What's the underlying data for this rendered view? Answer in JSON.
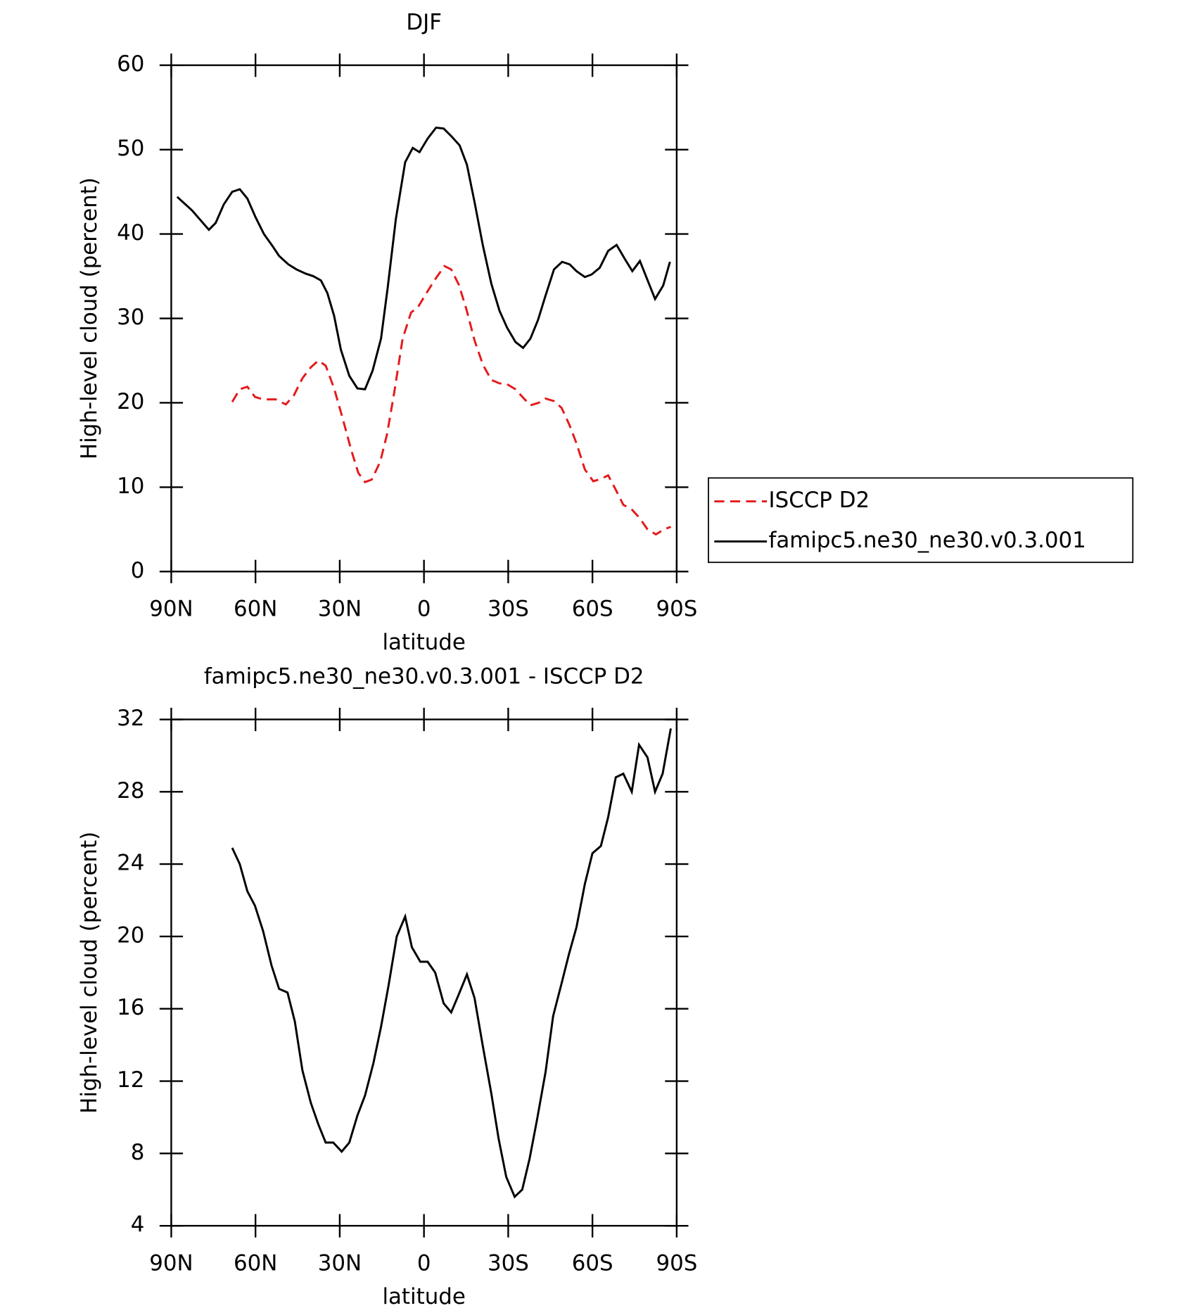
{
  "chart_data": [
    {
      "type": "line",
      "title": "DJF",
      "xlabel": "latitude",
      "ylabel": "High-level cloud (percent)",
      "xlim": [
        90,
        -90
      ],
      "xticks": [
        {
          "value": 90,
          "label": "90N"
        },
        {
          "value": 60,
          "label": "60N"
        },
        {
          "value": 30,
          "label": "30N"
        },
        0,
        {
          "value": -30,
          "label": "30S"
        },
        {
          "value": -60,
          "label": "60S"
        },
        {
          "value": -90,
          "label": "90S"
        }
      ],
      "ylim": [
        0,
        60
      ],
      "yticks": [
        0,
        10,
        20,
        30,
        40,
        50,
        60
      ],
      "legend": "outside-right",
      "series": [
        {
          "name": "ISCCP D2",
          "color": "#e41a1c",
          "dash": "dashed",
          "x": [
            68.3,
            65.6,
            62.9,
            60.2,
            57.3,
            52.8,
            49.2,
            46.3,
            43.3,
            40.3,
            37.6,
            35.0,
            32.0,
            29.0,
            26.0,
            23.4,
            21.0,
            18.6,
            15.6,
            13.2,
            10.6,
            7.6,
            4.6,
            2.2,
            -0.7,
            -3.7,
            -7.3,
            -9.7,
            -12.4,
            -15.1,
            -18.0,
            -21.0,
            -24.0,
            -26.9,
            -29.6,
            -32.6,
            -35.6,
            -37.9,
            -40.9,
            -43.3,
            -46.3,
            -49.0,
            -51.9,
            -54.3,
            -57.3,
            -60.3,
            -63.2,
            -65.6,
            -68.3,
            -71.0,
            -73.9,
            -76.9,
            -79.6,
            -82.6,
            -85.5,
            -87.9
          ],
          "values": [
            20.1,
            21.6,
            21.9,
            20.7,
            20.4,
            20.4,
            19.8,
            20.9,
            22.9,
            24.2,
            25.0,
            24.4,
            21.7,
            18.2,
            14.5,
            11.7,
            10.6,
            10.9,
            13.0,
            16.2,
            21.2,
            27.6,
            30.7,
            31.3,
            32.9,
            34.5,
            36.2,
            35.8,
            34.0,
            31.1,
            27.4,
            24.5,
            22.7,
            22.3,
            22.2,
            21.6,
            20.5,
            19.7,
            20.0,
            20.5,
            20.2,
            19.4,
            17.3,
            15.2,
            12.1,
            10.7,
            11.0,
            11.4,
            9.7,
            7.9,
            7.4,
            6.3,
            5.0,
            4.4,
            5.0,
            5.3
          ]
        },
        {
          "name": "famipc5.ne30_ne30.v0.3.001",
          "color": "#000000",
          "dash": "solid",
          "x": [
            87.9,
            82.6,
            76.6,
            74.2,
            71.3,
            68.3,
            65.6,
            62.9,
            60.0,
            57.0,
            54.0,
            51.6,
            48.3,
            45.4,
            42.1,
            39.4,
            36.7,
            34.4,
            32.0,
            29.6,
            26.6,
            23.7,
            21.0,
            18.3,
            15.3,
            12.9,
            10.0,
            6.7,
            4.0,
            1.6,
            -1.3,
            -4.3,
            -7.0,
            -9.7,
            -12.7,
            -15.3,
            -18.0,
            -21.0,
            -24.0,
            -26.9,
            -29.6,
            -32.6,
            -35.3,
            -37.9,
            -40.6,
            -43.3,
            -46.3,
            -49.2,
            -51.9,
            -54.3,
            -57.3,
            -59.7,
            -62.6,
            -65.6,
            -68.6,
            -71.6,
            -74.2,
            -76.9,
            -79.3,
            -82.3,
            -85.2,
            -87.6
          ],
          "values": [
            44.4,
            42.8,
            40.5,
            41.3,
            43.5,
            45.0,
            45.3,
            44.2,
            42.0,
            40.0,
            38.6,
            37.4,
            36.4,
            35.8,
            35.3,
            35.0,
            34.5,
            33.0,
            30.3,
            26.3,
            23.2,
            21.7,
            21.6,
            23.8,
            27.6,
            33.7,
            41.8,
            48.5,
            50.2,
            49.7,
            51.3,
            52.6,
            52.5,
            51.6,
            50.5,
            48.2,
            43.8,
            38.6,
            34.1,
            30.9,
            28.9,
            27.2,
            26.5,
            27.6,
            29.8,
            32.7,
            35.8,
            36.7,
            36.4,
            35.6,
            34.9,
            35.2,
            36.0,
            38.0,
            38.7,
            37.0,
            35.6,
            36.8,
            34.8,
            32.3,
            33.9,
            36.7
          ]
        }
      ]
    },
    {
      "type": "line",
      "title": "famipc5.ne30_ne30.v0.3.001 - ISCCP D2",
      "xlabel": "latitude",
      "ylabel": "High-level cloud (percent)",
      "xlim": [
        90,
        -90
      ],
      "xticks": [
        {
          "value": 90,
          "label": "90N"
        },
        {
          "value": 60,
          "label": "60N"
        },
        {
          "value": 30,
          "label": "30N"
        },
        0,
        {
          "value": -30,
          "label": "30S"
        },
        {
          "value": -60,
          "label": "60S"
        },
        {
          "value": -90,
          "label": "90S"
        }
      ],
      "ylim": [
        4,
        32
      ],
      "yticks": [
        4,
        8,
        12,
        16,
        20,
        24,
        28,
        32
      ],
      "series": [
        {
          "color": "#000000",
          "dash": "solid",
          "x": [
            68.3,
            65.6,
            62.9,
            60.2,
            57.3,
            54.3,
            51.6,
            48.6,
            46.0,
            43.3,
            40.3,
            37.6,
            35.0,
            32.3,
            29.3,
            26.6,
            23.7,
            21.0,
            18.0,
            15.3,
            12.6,
            9.7,
            6.7,
            4.3,
            1.3,
            -1.3,
            -4.0,
            -7.0,
            -9.7,
            -12.4,
            -15.3,
            -18.0,
            -21.0,
            -24.0,
            -26.6,
            -29.3,
            -32.3,
            -35.0,
            -37.6,
            -40.3,
            -43.3,
            -46.0,
            -49.0,
            -51.6,
            -54.3,
            -57.3,
            -60.0,
            -63.0,
            -65.6,
            -68.3,
            -71.0,
            -74.0,
            -76.6,
            -79.6,
            -82.3,
            -85.0,
            -87.9
          ],
          "values": [
            24.9,
            24.0,
            22.5,
            21.7,
            20.3,
            18.4,
            17.1,
            16.9,
            15.3,
            12.6,
            10.8,
            9.6,
            8.6,
            8.6,
            8.1,
            8.6,
            10.1,
            11.2,
            13.0,
            15.0,
            17.3,
            20.0,
            21.1,
            19.4,
            18.6,
            18.6,
            18.0,
            16.3,
            15.8,
            16.8,
            17.9,
            16.6,
            13.9,
            11.3,
            8.8,
            6.7,
            5.6,
            6.0,
            7.7,
            9.9,
            12.5,
            15.6,
            17.4,
            19.0,
            20.5,
            22.9,
            24.6,
            25.0,
            26.6,
            28.8,
            29.0,
            28.0,
            30.6,
            29.9,
            28.0,
            29.0,
            31.5
          ]
        }
      ]
    }
  ]
}
